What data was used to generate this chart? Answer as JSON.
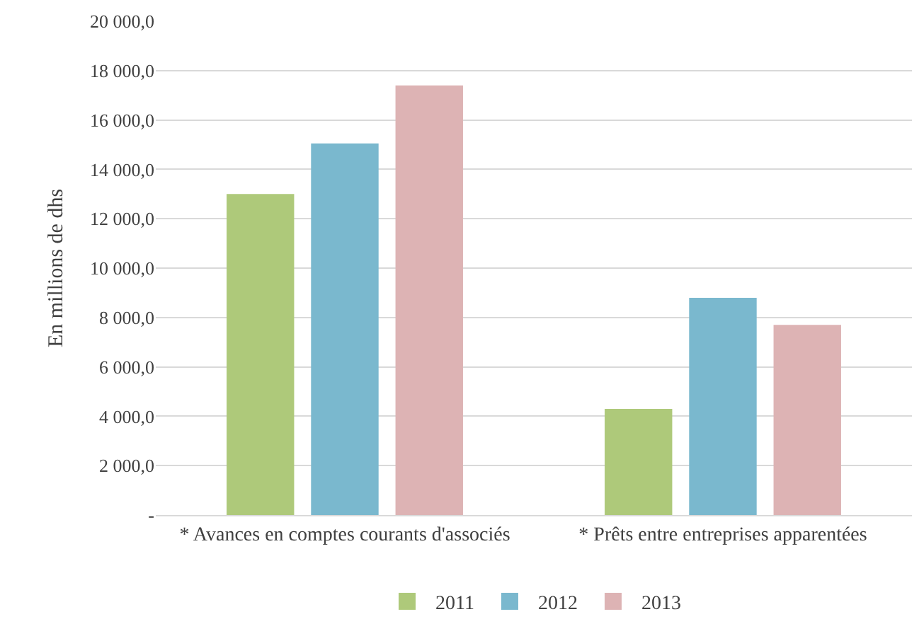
{
  "chart_data": {
    "type": "bar",
    "ylabel": "En millions de dhs",
    "categories": [
      "* Avances en comptes courants d'associés",
      "* Prêts entre entreprises apparentées"
    ],
    "series": [
      {
        "name": "2011",
        "color": "#aec97a",
        "values": [
          13000,
          4300
        ]
      },
      {
        "name": "2012",
        "color": "#7ab8ce",
        "values": [
          15050,
          8800
        ]
      },
      {
        "name": "2013",
        "color": "#ddb3b4",
        "values": [
          17400,
          7700
        ]
      }
    ],
    "ylim": [
      0,
      20000
    ],
    "yticks": [
      {
        "value": 0,
        "label": "-"
      },
      {
        "value": 2000,
        "label": "2 000,0"
      },
      {
        "value": 4000,
        "label": "4 000,0"
      },
      {
        "value": 6000,
        "label": "6 000,0"
      },
      {
        "value": 8000,
        "label": "8 000,0"
      },
      {
        "value": 10000,
        "label": "10 000,0"
      },
      {
        "value": 12000,
        "label": "12 000,0"
      },
      {
        "value": 14000,
        "label": "14 000,0"
      },
      {
        "value": 16000,
        "label": "16 000,0"
      },
      {
        "value": 18000,
        "label": "18 000,0"
      },
      {
        "value": 20000,
        "label": "20 000,0"
      }
    ],
    "grid": "y",
    "legend": "bottom"
  }
}
